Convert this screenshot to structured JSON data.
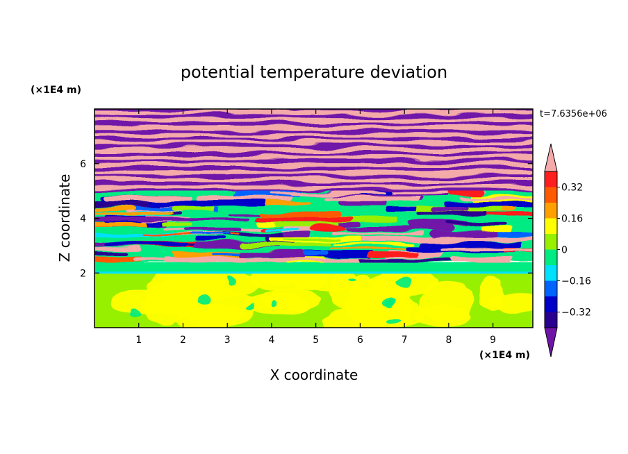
{
  "chart_data": {
    "type": "heatmap",
    "title": "potential temperature deviation",
    "xlabel": "X coordinate",
    "ylabel": "Z coordinate",
    "x_unit": "(×1E4 m)",
    "y_unit": "(×1E4 m)",
    "time_label": "t=7.6356e+06",
    "xlim": [
      0,
      9.9
    ],
    "ylim": [
      0,
      8
    ],
    "x_ticks": [
      1,
      2,
      3,
      4,
      5,
      6,
      7,
      8,
      9
    ],
    "y_ticks": [
      2,
      4,
      6
    ],
    "colorbar": {
      "levels": [
        -0.4,
        -0.32,
        -0.24,
        -0.16,
        -0.08,
        0,
        0.08,
        0.16,
        0.24,
        0.32,
        0.4
      ],
      "tick_labels": [
        "0.32",
        "0.16",
        "0",
        "−0.16",
        "−0.32"
      ],
      "tick_values": [
        0.32,
        0.16,
        0,
        -0.16,
        -0.32
      ],
      "colors": [
        "#5a00a0",
        "#2a0090",
        "#0000c8",
        "#0064ff",
        "#00e0ff",
        "#00eb82",
        "#96f000",
        "#ffff00",
        "#ffa000",
        "#ff5a00",
        "#ff1e1e",
        "#f5a0a0"
      ],
      "under_color": "#7014a8",
      "over_color": "#f5aaaa"
    },
    "regions": [
      {
        "z_range": [
          0,
          2
        ],
        "description_values": "mostly 0 to 0.08 (green tones), weak cells"
      },
      {
        "z_range": [
          2,
          2.4
        ],
        "description_values": "thin layer near -0.08 to 0 (cyan/teal)"
      },
      {
        "z_range": [
          2.4,
          5
        ],
        "description_values": "turbulent mixing, full range -0.4 to 0.4"
      },
      {
        "z_range": [
          5,
          8
        ],
        "description_values": "alternating bands below -0.4 and above 0.4"
      }
    ]
  }
}
